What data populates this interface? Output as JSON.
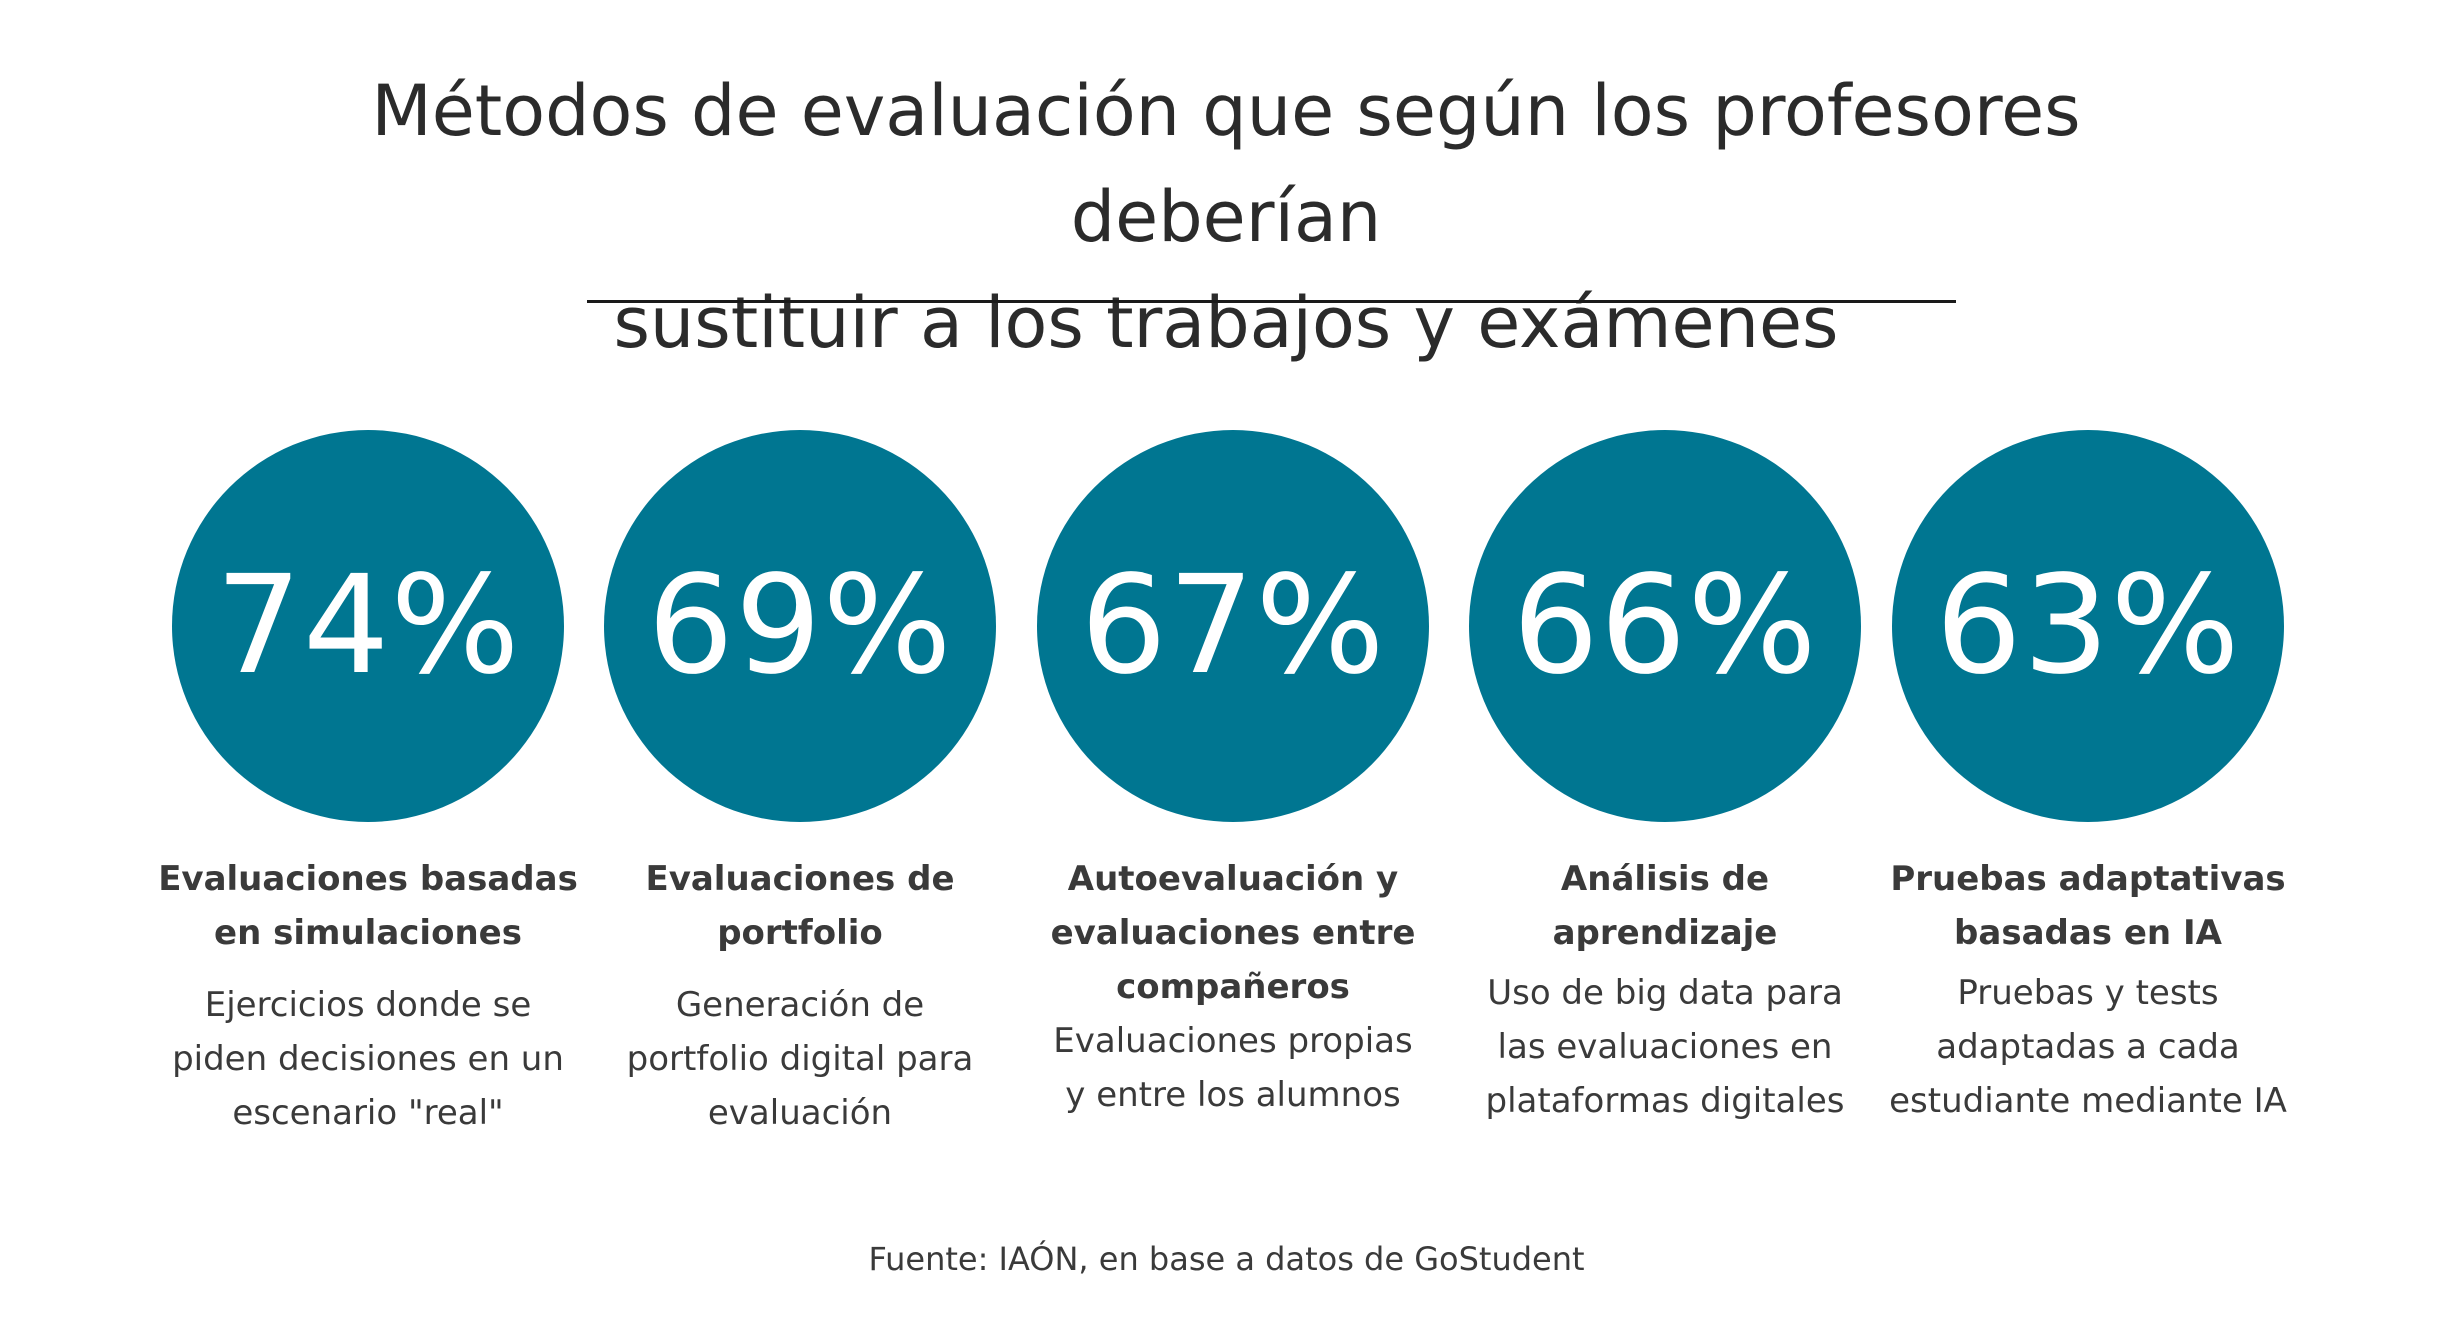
{
  "chart_data": {
    "type": "table",
    "title": "Métodos de evaluación que según los profesores deberían sustituir a los trabajos y exámenes",
    "title_lines": [
      "Métodos de evaluación que según los profesores deberían",
      "sustituir a los trabajos y exámenes"
    ],
    "unit": "%",
    "circle_color": "#007691",
    "categories": [
      "Evaluaciones basadas en simulaciones",
      "Evaluaciones de portfolio",
      "Autoevaluación y evaluaciones entre compañeros",
      "Análisis de aprendizaje",
      "Pruebas adaptativas basadas en IA"
    ],
    "values": [
      74,
      69,
      67,
      66,
      63
    ],
    "items": [
      {
        "value_text": "74%",
        "label_lines": [
          "Evaluaciones basadas",
          "en simulaciones"
        ],
        "desc_lines": [
          "Ejercicios donde se",
          "piden decisiones en un",
          "escenario \"real\""
        ]
      },
      {
        "value_text": "69%",
        "label_lines": [
          "Evaluaciones de",
          "portfolio"
        ],
        "desc_lines": [
          "Generación de",
          "portfolio digital para",
          "evaluación"
        ]
      },
      {
        "value_text": "67%",
        "label_lines": [
          "Autoevaluación y",
          "evaluaciones entre",
          "compañeros"
        ],
        "desc_lines": [
          "Evaluaciones propias",
          "y entre los alumnos"
        ]
      },
      {
        "value_text": "66%",
        "label_lines": [
          "Análisis de",
          "aprendizaje"
        ],
        "desc_lines": [
          "Uso de big data para",
          "las evaluaciones en",
          "plataformas digitales"
        ]
      },
      {
        "value_text": "63%",
        "label_lines": [
          "Pruebas adaptativas",
          "basadas en IA"
        ],
        "desc_lines": [
          "Pruebas y tests",
          "adaptadas a cada",
          "estudiante mediante IA"
        ]
      }
    ],
    "source": "Fuente: IAÓN, en base a datos de GoStudent"
  }
}
